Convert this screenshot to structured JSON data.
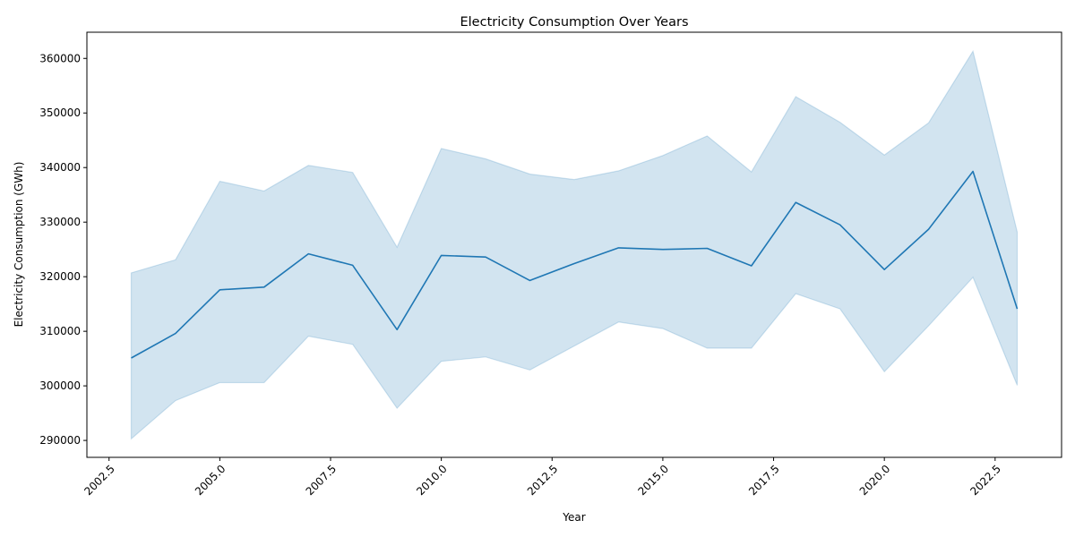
{
  "chart_data": {
    "type": "line",
    "title": "Electricity Consumption Over Years",
    "xlabel": "Year",
    "ylabel": "Electricity Consumption (GWh)",
    "xlim": [
      2002.0,
      2024.0
    ],
    "ylim": [
      286900,
      364800
    ],
    "xticks": [
      2002.5,
      2005.0,
      2007.5,
      2010.0,
      2012.5,
      2015.0,
      2017.5,
      2020.0,
      2022.5
    ],
    "xtick_labels": [
      "2002.5",
      "2005.0",
      "2007.5",
      "2010.0",
      "2012.5",
      "2015.0",
      "2017.5",
      "2020.0",
      "2022.5"
    ],
    "yticks": [
      290000,
      300000,
      310000,
      320000,
      330000,
      340000,
      350000,
      360000
    ],
    "ytick_labels": [
      "290000",
      "300000",
      "310000",
      "320000",
      "330000",
      "340000",
      "350000",
      "360000"
    ],
    "grid": false,
    "line_color": "#1f77b4",
    "band_color": "#1f77b4",
    "x": [
      2003,
      2004,
      2005,
      2006,
      2007,
      2008,
      2009,
      2010,
      2011,
      2012,
      2013,
      2014,
      2015,
      2016,
      2017,
      2018,
      2019,
      2020,
      2021,
      2022,
      2023
    ],
    "series": [
      {
        "values": [
          305100,
          309600,
          317600,
          318100,
          324200,
          322100,
          310300,
          323900,
          323600,
          319300,
          322400,
          325300,
          325000,
          325200,
          322000,
          333600,
          329500,
          321300,
          328700,
          339300,
          314100
        ],
        "band_upper": [
          320700,
          323100,
          337500,
          335700,
          340400,
          339100,
          325400,
          343500,
          341600,
          338800,
          337800,
          339400,
          342200,
          345800,
          339200,
          353000,
          348300,
          342300,
          348200,
          361300,
          328200
        ],
        "band_lower": [
          290300,
          297300,
          300600,
          300600,
          309100,
          307600,
          295900,
          304500,
          305300,
          302900,
          307300,
          311700,
          310500,
          306900,
          306900,
          316900,
          314100,
          302600,
          311000,
          319900,
          300100
        ]
      }
    ]
  }
}
